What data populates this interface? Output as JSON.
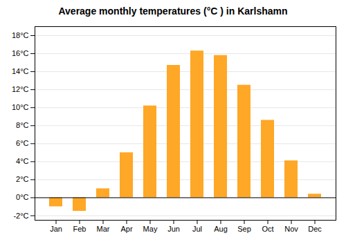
{
  "chart_data": {
    "type": "bar",
    "title": "Average monthly temperatures (°C ) in Karlshamn",
    "categories": [
      "Jan",
      "Feb",
      "Mar",
      "Apr",
      "May",
      "Jun",
      "Jul",
      "Aug",
      "Sep",
      "Oct",
      "Nov",
      "Dec"
    ],
    "values": [
      -1.0,
      -1.5,
      1.0,
      5.0,
      10.2,
      14.7,
      16.3,
      15.8,
      12.5,
      8.6,
      4.1,
      0.4
    ],
    "color": "#FFA726",
    "ylim": [
      -2.5,
      19
    ],
    "yticks": [
      {
        "value": -2,
        "label": "-2°C"
      },
      {
        "value": 0,
        "label": "0°C"
      },
      {
        "value": 2,
        "label": "2°C"
      },
      {
        "value": 4,
        "label": "4°C"
      },
      {
        "value": 6,
        "label": "6°C"
      },
      {
        "value": 8,
        "label": "8°C"
      },
      {
        "value": 10,
        "label": "10°C"
      },
      {
        "value": 12,
        "label": "12°C"
      },
      {
        "value": 14,
        "label": "14°C"
      },
      {
        "value": 16,
        "label": "16°C"
      },
      {
        "value": 18,
        "label": "18°C"
      }
    ],
    "grid": true
  }
}
